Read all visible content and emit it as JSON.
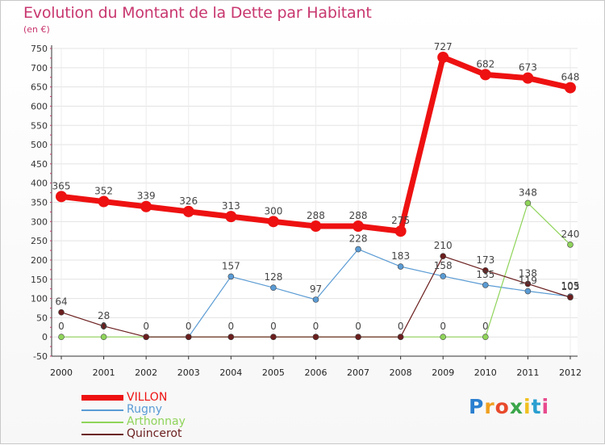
{
  "chart_data": {
    "type": "line",
    "title": "Evolution du Montant de la Dette par Habitant",
    "subtitle": "(en €)",
    "categories": [
      "2000",
      "2001",
      "2002",
      "2003",
      "2004",
      "2005",
      "2006",
      "2007",
      "2008",
      "2009",
      "2010",
      "2011",
      "2012"
    ],
    "ylim": [
      -50,
      750
    ],
    "yticks": [
      -50,
      0,
      50,
      100,
      150,
      200,
      250,
      300,
      350,
      400,
      450,
      500,
      550,
      600,
      650,
      700,
      750
    ],
    "ytick_labels": [
      "-50",
      "0",
      "50",
      "100",
      "150",
      "200",
      "250",
      "300",
      "350",
      "400",
      "450",
      "500",
      "550",
      "600",
      "650",
      "700",
      "750"
    ],
    "grid": true,
    "legend_position": "bottom-left",
    "series": [
      {
        "name": "VILLON",
        "color": "#ee1111",
        "width": 7,
        "marker": 7,
        "values": [
          365,
          352,
          339,
          326,
          313,
          300,
          288,
          288,
          275,
          727,
          682,
          673,
          648
        ],
        "labels": [
          "365",
          "352",
          "339",
          "326",
          "313",
          "300",
          "288",
          "288",
          "275",
          "727",
          "682",
          "673",
          "648"
        ]
      },
      {
        "name": "Rugny",
        "color": "#5a9bd4",
        "width": 1.2,
        "marker": 3.5,
        "values": [
          null,
          null,
          0,
          0,
          157,
          128,
          97,
          228,
          183,
          158,
          135,
          119,
          105
        ],
        "labels": [
          "",
          "",
          "",
          "",
          "157",
          "128",
          "97",
          "228",
          "183",
          "158",
          "135",
          "119",
          "105"
        ]
      },
      {
        "name": "Arthonnay",
        "color": "#8fd45a",
        "width": 1.2,
        "marker": 3.5,
        "values": [
          0,
          0,
          0,
          0,
          0,
          0,
          0,
          0,
          0,
          0,
          0,
          348,
          240
        ],
        "labels": [
          "0",
          "0",
          "",
          "",
          "",
          "",
          "",
          "",
          "",
          "0",
          "0",
          "348",
          "240"
        ]
      },
      {
        "name": "Quincerot",
        "color": "#6b1e1e",
        "width": 1.2,
        "marker": 3.5,
        "values": [
          64,
          28,
          0,
          0,
          0,
          0,
          0,
          0,
          0,
          210,
          173,
          138,
          103
        ],
        "labels": [
          "64",
          "28",
          "0",
          "0",
          "0",
          "0",
          "0",
          "0",
          "0",
          "210",
          "173",
          "138",
          "103"
        ]
      }
    ]
  },
  "brand": {
    "letters": [
      {
        "ch": "P",
        "color": "#2a7fd0"
      },
      {
        "ch": "r",
        "color": "#f0a020"
      },
      {
        "ch": "o",
        "color": "#e84a2c"
      },
      {
        "ch": "x",
        "color": "#3aa64a"
      },
      {
        "ch": "i",
        "color": "#f0c020"
      },
      {
        "ch": "t",
        "color": "#2a9fd0"
      },
      {
        "ch": "i",
        "color": "#e84a8c"
      }
    ]
  }
}
